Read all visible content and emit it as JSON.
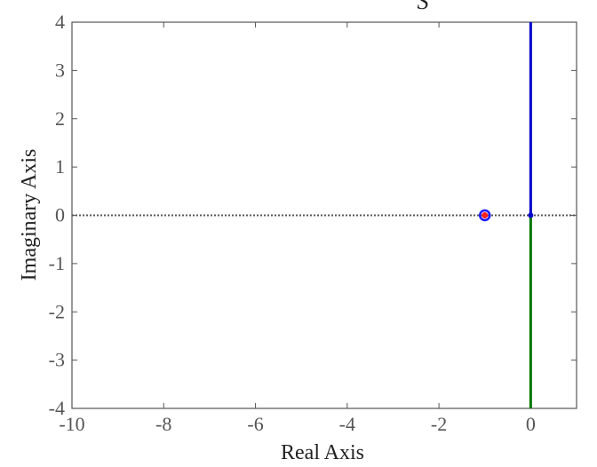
{
  "chart_data": {
    "type": "line",
    "title": "S",
    "xlabel": "Real Axis",
    "ylabel": "Imaginary Axis",
    "xlim": [
      -10,
      1
    ],
    "ylim": [
      -4,
      4
    ],
    "xticks": [
      -10,
      -8,
      -6,
      -4,
      -2,
      0
    ],
    "yticks": [
      -4,
      -3,
      -2,
      -1,
      0,
      1,
      2,
      3,
      4
    ],
    "grid": false,
    "series": [
      {
        "color": "#0000cc",
        "x": [
          0,
          0
        ],
        "y": [
          0,
          4
        ]
      },
      {
        "color": "#007700",
        "x": [
          0,
          0
        ],
        "y": [
          0,
          -4
        ]
      },
      {
        "color": "#555555",
        "style": "dotted",
        "x": [
          -10,
          1
        ],
        "y": [
          0,
          0
        ]
      }
    ],
    "zeros": [
      {
        "x": -1,
        "y": 0,
        "color": "#1a1aff"
      }
    ],
    "poles": [
      {
        "x": -1,
        "y": 0,
        "color": "#ff2020"
      },
      {
        "x": 0,
        "y": 0,
        "color": "#0000cc"
      }
    ]
  }
}
